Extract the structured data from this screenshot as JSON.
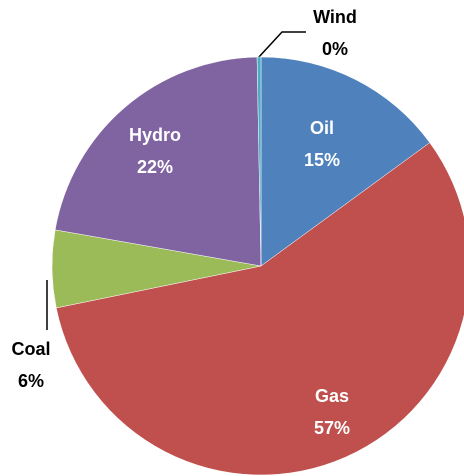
{
  "chart_data": {
    "type": "pie",
    "categories": [
      "Oil",
      "Gas",
      "Coal",
      "Hydro",
      "Wind"
    ],
    "values": [
      15,
      57,
      6,
      22,
      0.3
    ],
    "value_labels": [
      "15%",
      "57%",
      "6%",
      "22%",
      "0%"
    ],
    "colors": [
      "#4f81bd",
      "#c0504d",
      "#9bbb59",
      "#8064a2",
      "#4bacc6"
    ]
  }
}
